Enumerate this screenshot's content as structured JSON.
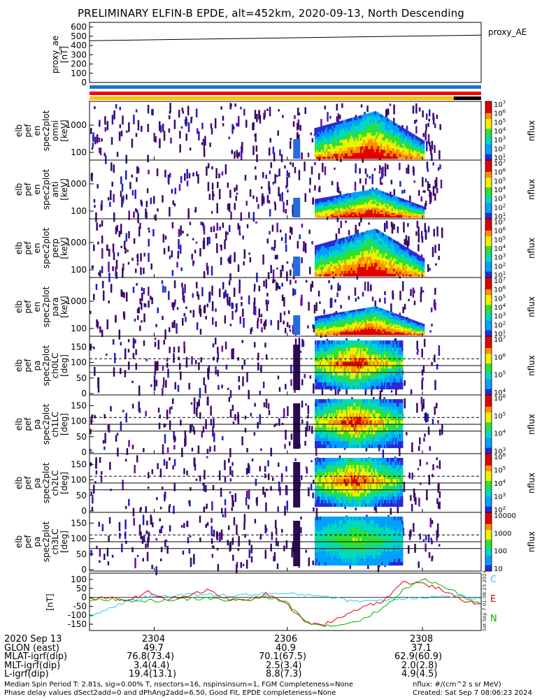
{
  "title": "PRELIMINARY ELFIN-B EPDE, alt=452km, 2020-09-13, North Descending",
  "proxy_ae": {
    "label": "proxy_AE",
    "ylabel_lines": [
      "proxy_ae",
      "[nT]"
    ],
    "yticks": [
      "600",
      "500",
      "400",
      "300",
      "200",
      "100",
      "0"
    ],
    "ylim": [
      0,
      650
    ],
    "x": [
      0,
      1
    ],
    "y": [
      452,
      512
    ]
  },
  "status_bars": {
    "colors": [
      "#1976d2",
      "#ff0000",
      "#ffc000"
    ],
    "black_segment_fraction": [
      0.93,
      1.0
    ]
  },
  "energy_panels": [
    {
      "ylabel_lines": [
        "elb",
        "pef",
        "en",
        "spec2plot",
        "omni",
        "[keV]"
      ],
      "yticks": [
        "1000",
        "100"
      ],
      "cb_ticks": [
        "10^7",
        "10^6",
        "10^5",
        "10^4",
        "10^3",
        "10^2",
        "10^1"
      ],
      "cb_unit": "nflux"
    },
    {
      "ylabel_lines": [
        "elb",
        "pef",
        "en",
        "spec2plot",
        "anti",
        "[keV]"
      ],
      "yticks": [
        "1000",
        "100"
      ],
      "cb_ticks": [
        "10^7",
        "10^6",
        "10^5",
        "10^4",
        "10^3",
        "10^2",
        "10^1"
      ],
      "cb_unit": "nflux"
    },
    {
      "ylabel_lines": [
        "elb",
        "pef",
        "en",
        "spec2plot",
        "perp",
        "[keV]"
      ],
      "yticks": [
        "1000",
        "100"
      ],
      "cb_ticks": [
        "10^7",
        "10^6",
        "10^5",
        "10^4",
        "10^3",
        "10^2",
        "10^1"
      ],
      "cb_unit": "nflux"
    },
    {
      "ylabel_lines": [
        "elb",
        "pef",
        "en",
        "spec2plot",
        "para",
        "[keV]"
      ],
      "yticks": [
        "1000",
        "100"
      ],
      "cb_ticks": [
        "10^7",
        "10^6",
        "10^5",
        "10^4",
        "10^3",
        "10^2",
        "10^1"
      ],
      "cb_unit": "nflux"
    }
  ],
  "pa_panels": [
    {
      "ylabel_lines": [
        "elb",
        "pef",
        "pa",
        "spec2plot",
        "ch0LC",
        "[deg]"
      ],
      "yticks": [
        "150",
        "100",
        "50",
        "0"
      ],
      "cb_ticks": [
        "10^7",
        "10^6",
        "10^5",
        "10^4"
      ],
      "cb_unit": "nflux"
    },
    {
      "ylabel_lines": [
        "elb",
        "pef",
        "pa",
        "spec2plot",
        "ch1LC",
        "[deg]"
      ],
      "yticks": [
        "150",
        "100",
        "50",
        "0"
      ],
      "cb_ticks": [
        "10^6",
        "10^5",
        "10^4",
        "10^3"
      ],
      "cb_unit": "nflux"
    },
    {
      "ylabel_lines": [
        "elb",
        "pef",
        "pa",
        "spec2plot",
        "ch2LC",
        "[deg]"
      ],
      "yticks": [
        "150",
        "100",
        "50",
        "0"
      ],
      "cb_ticks": [
        "10^6",
        "10^5",
        "10^4",
        "10^3",
        "10^2"
      ],
      "cb_unit": "nflux"
    },
    {
      "ylabel_lines": [
        "elb",
        "pef",
        "pa",
        "spec2plot",
        "ch3LC",
        "[deg]"
      ],
      "yticks": [
        "150",
        "100",
        "50",
        "0"
      ],
      "cb_ticks": [
        "10000",
        "1000",
        "100",
        "10"
      ],
      "cb_unit": "nflux"
    }
  ],
  "bfield": {
    "ylabel": "[nT]",
    "yticks": [
      "100",
      "50",
      "0",
      "-50",
      "-100",
      "-150"
    ],
    "ylim": [
      -185,
      135
    ],
    "legend": [
      {
        "name": "C",
        "color": "#22c8ff"
      },
      {
        "name": "E",
        "color": "#e00000"
      },
      {
        "name": "N",
        "color": "#00b000"
      }
    ]
  },
  "stamp": "Sat Sep  7 01:08:23 2024",
  "chart_data": {
    "type": "line",
    "title": "PRELIMINARY ELFIN-B EPDE, alt=452km, 2020-09-13, North Descending",
    "x_ticks": [
      "2304",
      "2306",
      "2308"
    ],
    "series": [
      {
        "name": "proxy_AE",
        "x": [
          0,
          1
        ],
        "values": [
          452,
          512
        ]
      },
      {
        "name": "C",
        "x": [
          0.0,
          0.05,
          0.1,
          0.15,
          0.2,
          0.25,
          0.3,
          0.35,
          0.4,
          0.45,
          0.5,
          0.55,
          0.6,
          0.65,
          0.7,
          0.75,
          0.8,
          0.85,
          0.9,
          0.95,
          1.0
        ],
        "values": [
          -110,
          -60,
          -20,
          5,
          10,
          15,
          15,
          10,
          15,
          20,
          20,
          15,
          10,
          -15,
          -20,
          -15,
          -5,
          0,
          5,
          5,
          -10
        ]
      },
      {
        "name": "E",
        "x": [
          0.0,
          0.05,
          0.1,
          0.15,
          0.2,
          0.25,
          0.3,
          0.35,
          0.4,
          0.45,
          0.5,
          0.55,
          0.6,
          0.65,
          0.7,
          0.75,
          0.8,
          0.85,
          0.9,
          0.95,
          1.0
        ],
        "values": [
          -10,
          -5,
          -15,
          30,
          -10,
          10,
          40,
          -10,
          -20,
          20,
          -30,
          -140,
          -150,
          -100,
          -50,
          -20,
          85,
          75,
          45,
          -20,
          -35
        ]
      },
      {
        "name": "N",
        "x": [
          0.0,
          0.05,
          0.1,
          0.15,
          0.2,
          0.25,
          0.3,
          0.35,
          0.4,
          0.45,
          0.5,
          0.55,
          0.6,
          0.65,
          0.7,
          0.75,
          0.8,
          0.85,
          0.9,
          0.95,
          1.0
        ],
        "values": [
          -15,
          -10,
          -20,
          -20,
          -15,
          -10,
          -5,
          -15,
          -10,
          0,
          -20,
          -130,
          -160,
          -150,
          -120,
          -60,
          40,
          100,
          70,
          10,
          -40
        ]
      }
    ]
  },
  "ephemeris": {
    "rows": [
      {
        "label": "2020 Sep 13",
        "values": [
          "2304",
          "2306",
          "2308"
        ]
      },
      {
        "label": "GLON (east)",
        "values": [
          "49.7",
          "40.9",
          "37.1"
        ]
      },
      {
        "label": "MLAT-igrf(dip)",
        "values": [
          "76.8(73.4)",
          "70.1(67.5)",
          "62.9(60.9)"
        ]
      },
      {
        "label": "MLT-igrf(dip)",
        "values": [
          "3.4(4.4)",
          "2.5(3.4)",
          "2.0(2.8)"
        ]
      },
      {
        "label": "L-igrf(dip)",
        "values": [
          "19.4(13.1)",
          "8.8(7.3)",
          "4.9(4.5)"
        ]
      }
    ]
  },
  "footer": {
    "line1": "Median Spin Period T: 2.81s, sig=0.00% T, nsectors=16, nspinsinsum=1, FGM Completeness=None",
    "line2": "Phase delay values dSect2add=0 and dPhAng2add=6.50, Good Fit, EPDE completeness=None",
    "units": "nflux: #/(cm^2 s sr MeV)",
    "created": "Created: Sat Sep  7 08:06:23 2024"
  }
}
